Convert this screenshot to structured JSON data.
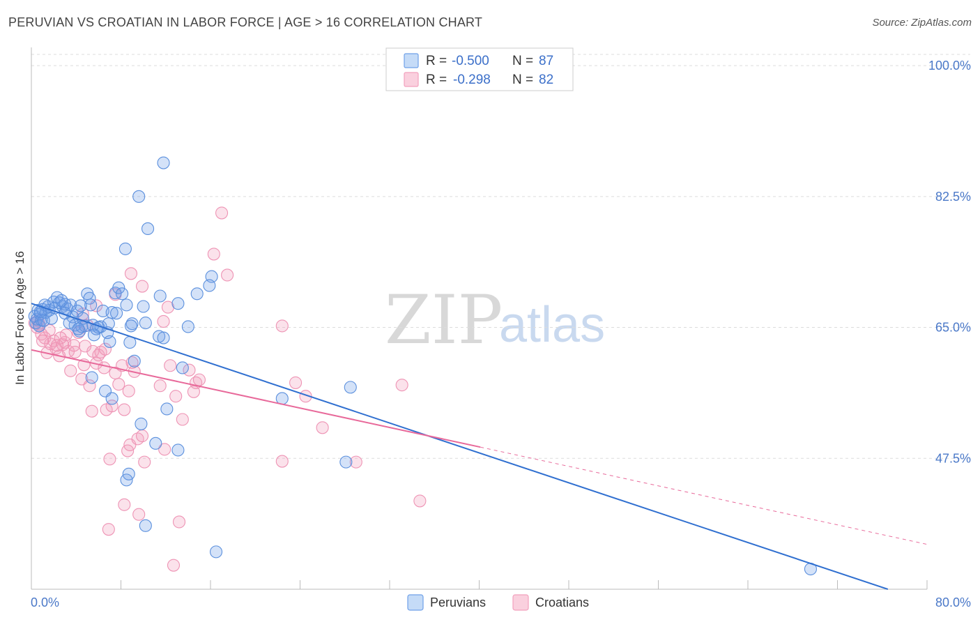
{
  "title": "PERUVIAN VS CROATIAN IN LABOR FORCE | AGE > 16 CORRELATION CHART",
  "source": "Source: ZipAtlas.com",
  "watermark": {
    "part1": "ZIP",
    "part2": "atlas"
  },
  "colors": {
    "peruvians": "#6fa0e8",
    "peruvians_line": "#2f6fd0",
    "croatians": "#f2a0bd",
    "croatians_line": "#e8699a",
    "axis_label": "#4a78c8"
  },
  "legend": {
    "peruvians": {
      "r_label": "R =",
      "r_value": "-0.500",
      "n_label": "N =",
      "n_value": "87"
    },
    "croatians": {
      "r_label": "R =",
      "r_value": "-0.298",
      "n_label": "N =",
      "n_value": "82"
    }
  },
  "chart_data": {
    "type": "scatter",
    "title": "PERUVIAN VS CROATIAN IN LABOR FORCE | AGE > 16 CORRELATION CHART",
    "xlabel": "",
    "ylabel": "In Labor Force | Age > 16",
    "xlim": [
      0,
      80
    ],
    "ylim": [
      30,
      101.5
    ],
    "x_tick_labels": [
      "0.0%",
      "80.0%"
    ],
    "y_ticks": [
      47.5,
      65.0,
      82.5,
      100.0
    ],
    "y_tick_labels": [
      "47.5%",
      "65.0%",
      "82.5%",
      "100.0%"
    ],
    "legend_bottom": [
      "Peruvians",
      "Croatians"
    ],
    "series": [
      {
        "name": "Peruvians",
        "trend": {
          "x": [
            0,
            76.5
          ],
          "y": [
            68.2,
            30.0
          ]
        },
        "points": [
          [
            0.3,
            66.5
          ],
          [
            0.4,
            65.6
          ],
          [
            0.5,
            66.1
          ],
          [
            0.6,
            67.3
          ],
          [
            0.7,
            65.2
          ],
          [
            0.8,
            66.8
          ],
          [
            0.9,
            66.0
          ],
          [
            1.0,
            67.4
          ],
          [
            1.2,
            68.0
          ],
          [
            1.3,
            67.0
          ],
          [
            1.5,
            67.8
          ],
          [
            1.6,
            67.3
          ],
          [
            1.8,
            66.2
          ],
          [
            2.0,
            68.4
          ],
          [
            2.1,
            67.6
          ],
          [
            2.3,
            69.0
          ],
          [
            2.5,
            68.3
          ],
          [
            2.8,
            67.8
          ],
          [
            3.0,
            68.1
          ],
          [
            3.2,
            67.5
          ],
          [
            3.5,
            68.0
          ],
          [
            3.7,
            66.4
          ],
          [
            3.9,
            65.3
          ],
          [
            4.1,
            67.2
          ],
          [
            4.3,
            64.5
          ],
          [
            4.5,
            65.1
          ],
          [
            4.6,
            66.2
          ],
          [
            4.8,
            65.2
          ],
          [
            5.0,
            69.5
          ],
          [
            5.2,
            68.9
          ],
          [
            5.3,
            68.0
          ],
          [
            5.5,
            65.3
          ],
          [
            5.8,
            64.8
          ],
          [
            6.2,
            65.1
          ],
          [
            6.4,
            67.2
          ],
          [
            6.6,
            56.5
          ],
          [
            6.8,
            64.3
          ],
          [
            7.0,
            63.1
          ],
          [
            7.2,
            67.0
          ],
          [
            7.5,
            69.6
          ],
          [
            7.8,
            70.3
          ],
          [
            8.1,
            69.5
          ],
          [
            8.5,
            68.0
          ],
          [
            8.8,
            63.0
          ],
          [
            9.0,
            65.5
          ],
          [
            9.2,
            60.5
          ],
          [
            10.2,
            65.6
          ],
          [
            11.4,
            63.8
          ],
          [
            11.5,
            69.2
          ],
          [
            11.8,
            63.6
          ],
          [
            12.1,
            54.1
          ],
          [
            13.1,
            68.2
          ],
          [
            11.8,
            87.0
          ],
          [
            9.6,
            82.5
          ],
          [
            10.4,
            78.2
          ],
          [
            8.4,
            75.5
          ],
          [
            16.1,
            71.8
          ],
          [
            15.9,
            70.6
          ],
          [
            14.8,
            69.5
          ],
          [
            14.0,
            65.1
          ],
          [
            13.5,
            59.6
          ],
          [
            7.2,
            55.5
          ],
          [
            9.8,
            52.1
          ],
          [
            11.1,
            49.5
          ],
          [
            13.1,
            48.6
          ],
          [
            8.7,
            45.4
          ],
          [
            8.5,
            44.6
          ],
          [
            10.2,
            38.5
          ],
          [
            16.5,
            35.0
          ],
          [
            22.4,
            55.5
          ],
          [
            28.5,
            57.0
          ],
          [
            28.1,
            47.0
          ],
          [
            69.6,
            32.7
          ],
          [
            5.4,
            58.3
          ],
          [
            4.2,
            64.8
          ],
          [
            3.0,
            66.9
          ],
          [
            6.0,
            65.0
          ],
          [
            10.0,
            67.8
          ],
          [
            7.6,
            66.9
          ],
          [
            1.1,
            65.9
          ],
          [
            2.7,
            68.6
          ],
          [
            5.6,
            64.0
          ],
          [
            3.4,
            65.6
          ],
          [
            0.8,
            67.1
          ],
          [
            4.4,
            67.9
          ],
          [
            8.9,
            65.2
          ],
          [
            6.9,
            65.5
          ]
        ]
      },
      {
        "name": "Croatians",
        "trend": {
          "x": [
            0,
            40.1
          ],
          "y": [
            62.0,
            49.0
          ]
        },
        "trend_extension": {
          "x": [
            40.1,
            80
          ],
          "y": [
            49.0,
            36.0
          ]
        },
        "points": [
          [
            0.3,
            65.6
          ],
          [
            0.5,
            65.0
          ],
          [
            0.7,
            65.4
          ],
          [
            0.9,
            64.1
          ],
          [
            1.2,
            63.6
          ],
          [
            1.4,
            61.6
          ],
          [
            1.7,
            62.8
          ],
          [
            2.0,
            63.2
          ],
          [
            2.2,
            62.2
          ],
          [
            2.5,
            61.2
          ],
          [
            2.8,
            62.7
          ],
          [
            3.0,
            63.0
          ],
          [
            3.3,
            61.8
          ],
          [
            3.5,
            59.2
          ],
          [
            3.8,
            62.6
          ],
          [
            4.2,
            64.3
          ],
          [
            4.5,
            58.1
          ],
          [
            4.8,
            62.5
          ],
          [
            5.0,
            65.3
          ],
          [
            5.2,
            57.2
          ],
          [
            5.5,
            61.8
          ],
          [
            5.8,
            60.2
          ],
          [
            6.0,
            61.3
          ],
          [
            6.2,
            61.7
          ],
          [
            6.5,
            59.6
          ],
          [
            6.7,
            54.0
          ],
          [
            7.0,
            47.4
          ],
          [
            7.2,
            54.5
          ],
          [
            7.5,
            58.9
          ],
          [
            7.8,
            57.4
          ],
          [
            8.1,
            59.9
          ],
          [
            8.3,
            54.0
          ],
          [
            8.6,
            48.5
          ],
          [
            8.8,
            49.3
          ],
          [
            9.0,
            60.3
          ],
          [
            9.5,
            50.1
          ],
          [
            9.9,
            50.5
          ],
          [
            10.1,
            47.0
          ],
          [
            9.2,
            59.1
          ],
          [
            11.5,
            57.2
          ],
          [
            11.9,
            48.7
          ],
          [
            12.4,
            59.9
          ],
          [
            12.9,
            55.8
          ],
          [
            14.1,
            59.3
          ],
          [
            14.7,
            57.6
          ],
          [
            14.5,
            56.4
          ],
          [
            13.5,
            52.7
          ],
          [
            15.0,
            58.0
          ],
          [
            8.9,
            72.2
          ],
          [
            9.9,
            70.5
          ],
          [
            12.2,
            67.7
          ],
          [
            11.8,
            65.8
          ],
          [
            17.0,
            80.3
          ],
          [
            16.3,
            74.8
          ],
          [
            17.5,
            72.0
          ],
          [
            22.4,
            65.2
          ],
          [
            23.6,
            57.6
          ],
          [
            24.5,
            55.8
          ],
          [
            26.0,
            51.6
          ],
          [
            22.4,
            47.1
          ],
          [
            29.0,
            47.0
          ],
          [
            33.1,
            57.3
          ],
          [
            34.7,
            41.8
          ],
          [
            8.3,
            41.3
          ],
          [
            9.6,
            40.0
          ],
          [
            13.2,
            39.0
          ],
          [
            12.7,
            33.2
          ],
          [
            6.9,
            38.0
          ],
          [
            4.6,
            66.8
          ],
          [
            5.8,
            67.9
          ],
          [
            7.5,
            69.4
          ],
          [
            3.1,
            64.0
          ],
          [
            2.6,
            63.6
          ],
          [
            1.6,
            64.6
          ],
          [
            6.6,
            62.1
          ],
          [
            8.7,
            56.5
          ],
          [
            5.4,
            53.8
          ],
          [
            4.7,
            60.0
          ],
          [
            3.9,
            61.7
          ],
          [
            2.3,
            62.6
          ],
          [
            1.0,
            63.2
          ],
          [
            0.6,
            65.9
          ]
        ]
      }
    ]
  }
}
